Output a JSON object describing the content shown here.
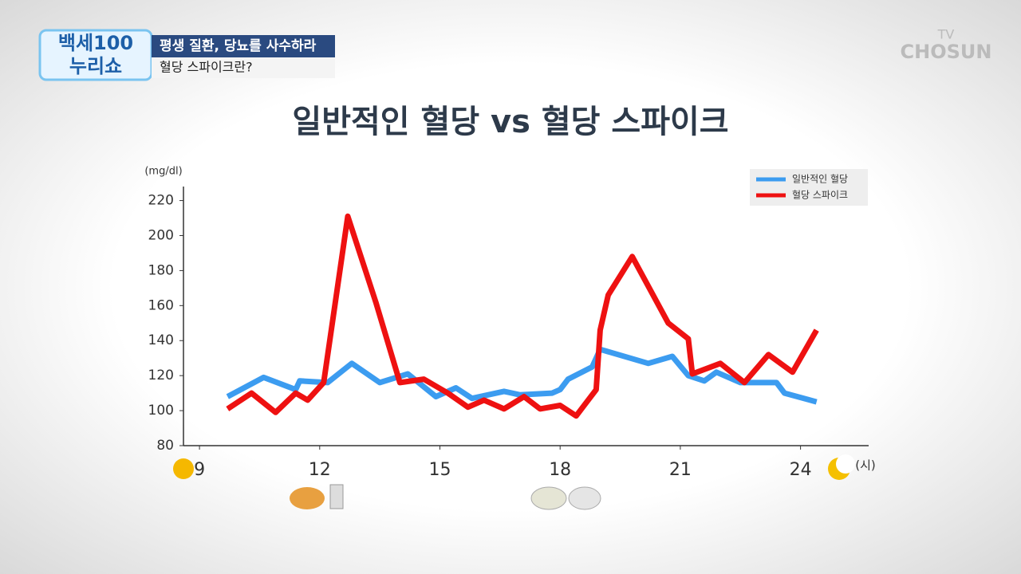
{
  "header": {
    "logo_top": "백세100",
    "logo_bottom": "누리쇼",
    "caption_1": "평생 질환, 당뇨를 사수하라",
    "caption_2": "혈당 스파이크란?",
    "channel_top": "TV",
    "channel_bottom": "CHOSUN"
  },
  "chart_data": {
    "type": "line",
    "title": "일반적인 혈당 vs 혈당 스파이크",
    "y_label": "(mg/dl)",
    "x_label": "(시)",
    "xlim": [
      8.6,
      25.7
    ],
    "xticks": [
      9,
      12,
      15,
      18,
      21,
      24
    ],
    "ylim": [
      80,
      228
    ],
    "yticks": [
      80,
      100,
      120,
      140,
      160,
      180,
      200,
      220
    ],
    "legend": "upper right",
    "series": [
      {
        "name": "일반적인 혈당",
        "color": "#3c9cf0",
        "x": [
          9.7,
          10.6,
          11.4,
          11.5,
          12.2,
          12.8,
          13.5,
          14.2,
          14.9,
          15.4,
          15.8,
          16.6,
          17.0,
          17.8,
          18.0,
          18.2,
          18.8,
          19.0,
          20.2,
          20.8,
          21.2,
          21.6,
          21.9,
          22.5,
          23.4,
          23.6,
          24.4
        ],
        "values": [
          108,
          119,
          112,
          117,
          116,
          127,
          116,
          121,
          108,
          113,
          107,
          111,
          109,
          110,
          112,
          118,
          125,
          135,
          127,
          131,
          120,
          117,
          122,
          116,
          116,
          110,
          105
        ]
      },
      {
        "name": "혈당 스파이크",
        "color": "#ee1111",
        "x": [
          9.7,
          10.3,
          10.9,
          11.4,
          11.7,
          12.1,
          12.7,
          13.4,
          14.0,
          14.6,
          15.2,
          15.7,
          16.1,
          16.6,
          17.1,
          17.5,
          18.0,
          18.4,
          18.9,
          19.0,
          19.2,
          19.8,
          20.7,
          21.2,
          21.3,
          22.0,
          22.6,
          23.2,
          23.8,
          24.4
        ],
        "values": [
          101,
          110,
          99,
          110,
          106,
          116,
          211,
          162,
          116,
          118,
          110,
          102,
          106,
          101,
          108,
          101,
          103,
          97,
          112,
          146,
          166,
          188,
          150,
          141,
          121,
          127,
          116,
          132,
          122,
          146
        ]
      }
    ]
  }
}
